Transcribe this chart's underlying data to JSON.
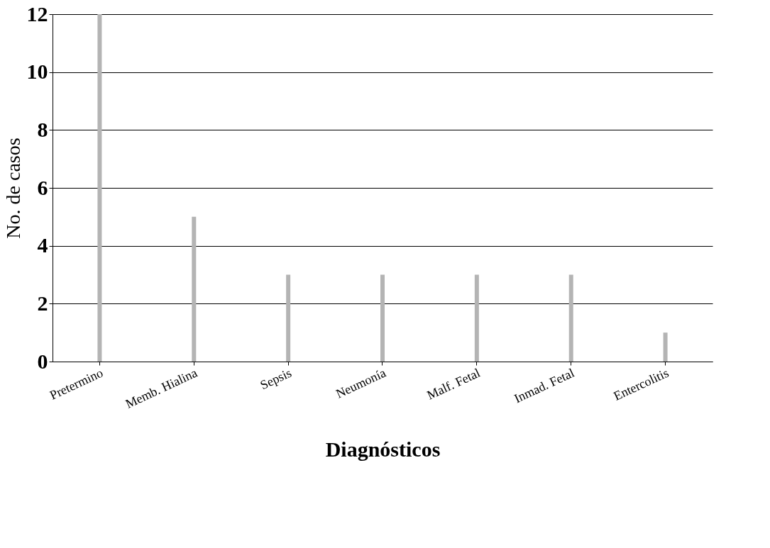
{
  "chart_data": {
    "type": "bar",
    "xlabel": "Diagnósticos",
    "ylabel": "No. de casos",
    "categories": [
      "Pretermino",
      "Memb. Hialina",
      "Sepsis",
      "Neumonía",
      "Malf. Fetal",
      "Inmad. Fetal",
      "Entercolitis"
    ],
    "series": [
      {
        "color": "#b4b4b4",
        "values": [
          12,
          5,
          3,
          3,
          3,
          3,
          1
        ]
      }
    ],
    "ylim": [
      0,
      12
    ],
    "yticks": [
      0,
      2,
      4,
      6,
      8,
      10,
      12
    ],
    "grid": "y"
  }
}
